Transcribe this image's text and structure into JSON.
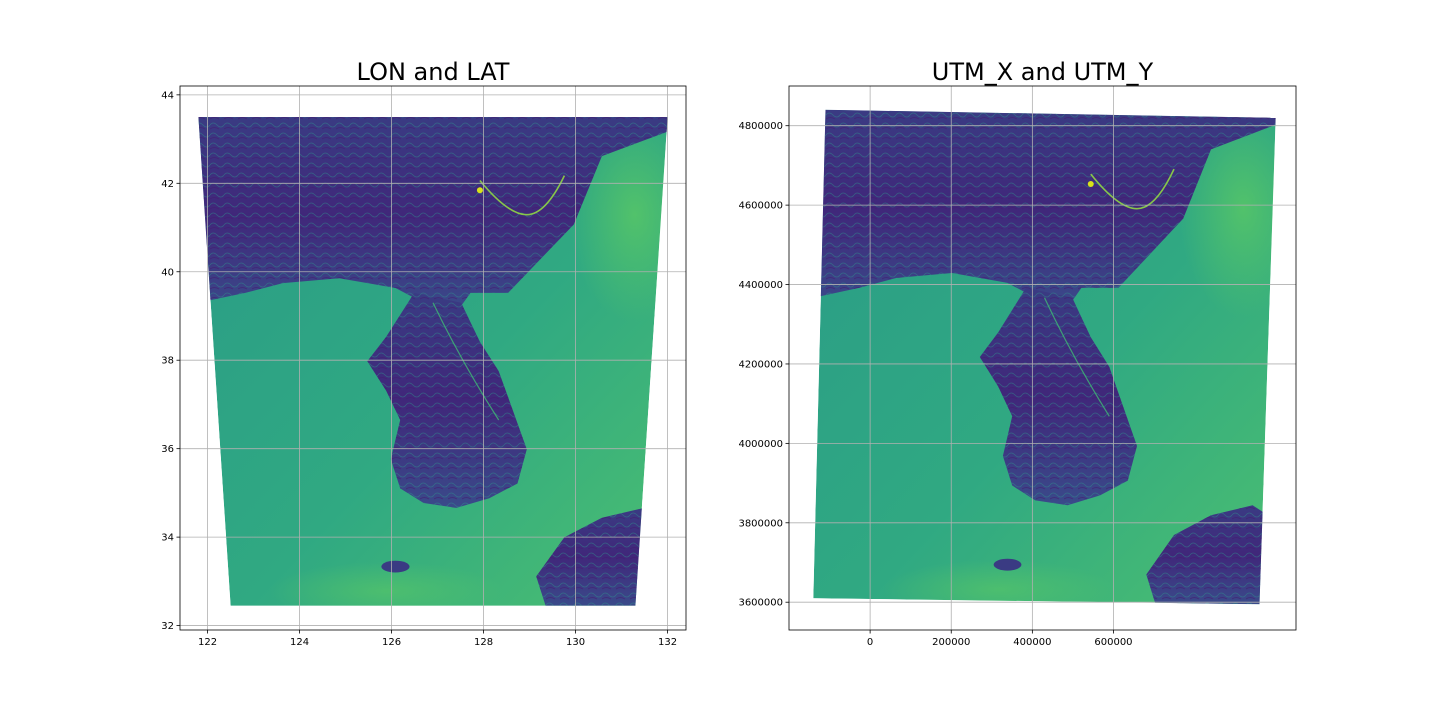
{
  "chart_data": [
    {
      "type": "heatmap",
      "title": "LON and LAT",
      "xlabel": "",
      "ylabel": "",
      "xlim": [
        121.4,
        132.4
      ],
      "ylim": [
        31.9,
        44.2
      ],
      "xticks": [
        122,
        124,
        126,
        128,
        130,
        132
      ],
      "yticks": [
        32,
        34,
        36,
        38,
        40,
        42,
        44
      ],
      "xtick_labels": [
        "122",
        "124",
        "126",
        "128",
        "130",
        "132"
      ],
      "ytick_labels": [
        "32",
        "34",
        "36",
        "38",
        "40",
        "42",
        "44"
      ],
      "grid": true,
      "colormap": "viridis",
      "domain_corners": [
        [
          121.8,
          43.5
        ],
        [
          132.0,
          43.5
        ],
        [
          131.3,
          32.45
        ],
        [
          122.5,
          32.45
        ]
      ]
    },
    {
      "type": "heatmap",
      "title": "UTM_X and UTM_Y",
      "xlabel": "",
      "ylabel": "",
      "xlim": [
        -200000,
        1050000
      ],
      "ylim": [
        3530000,
        4900000
      ],
      "xticks": [
        0,
        200000,
        400000,
        600000
      ],
      "yticks": [
        3600000,
        3800000,
        4000000,
        4200000,
        4400000,
        4600000,
        4800000
      ],
      "xtick_labels": [
        "0",
        "200000",
        "400000",
        "600000"
      ],
      "ytick_labels": [
        "3600000",
        "3800000",
        "4000000",
        "4200000",
        "4400000",
        "4600000",
        "4800000"
      ],
      "grid": true,
      "colormap": "viridis",
      "domain_corners": [
        [
          -110000,
          4840000
        ],
        [
          1000000,
          4820000
        ],
        [
          960000,
          3595000
        ],
        [
          -140000,
          3610000
        ]
      ]
    }
  ],
  "colors": {
    "land_dark": "#3b2a73",
    "land_mid": "#2b5f8c",
    "sea": "#27a081",
    "sea_light": "#4cc26c",
    "highlight": "#d8e219"
  }
}
